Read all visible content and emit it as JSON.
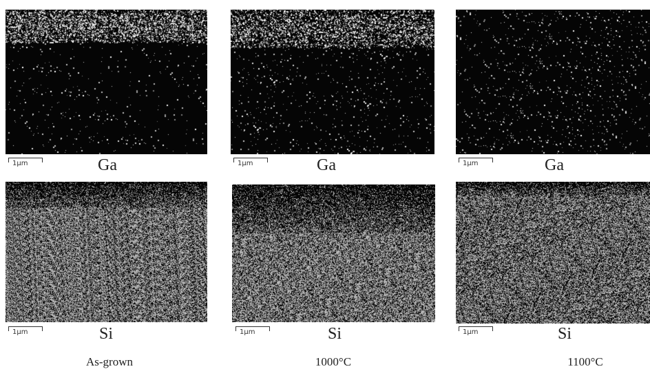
{
  "scale_label": "1μm",
  "columns": [
    {
      "caption": "As-grown",
      "maps": [
        {
          "element": "Ga"
        },
        {
          "element": "Si"
        }
      ]
    },
    {
      "caption": "1000°C",
      "maps": [
        {
          "element": "Ga"
        },
        {
          "element": "Si"
        }
      ]
    },
    {
      "caption": "1100°C",
      "maps": [
        {
          "element": "Ga"
        },
        {
          "element": "Si"
        }
      ]
    }
  ]
}
